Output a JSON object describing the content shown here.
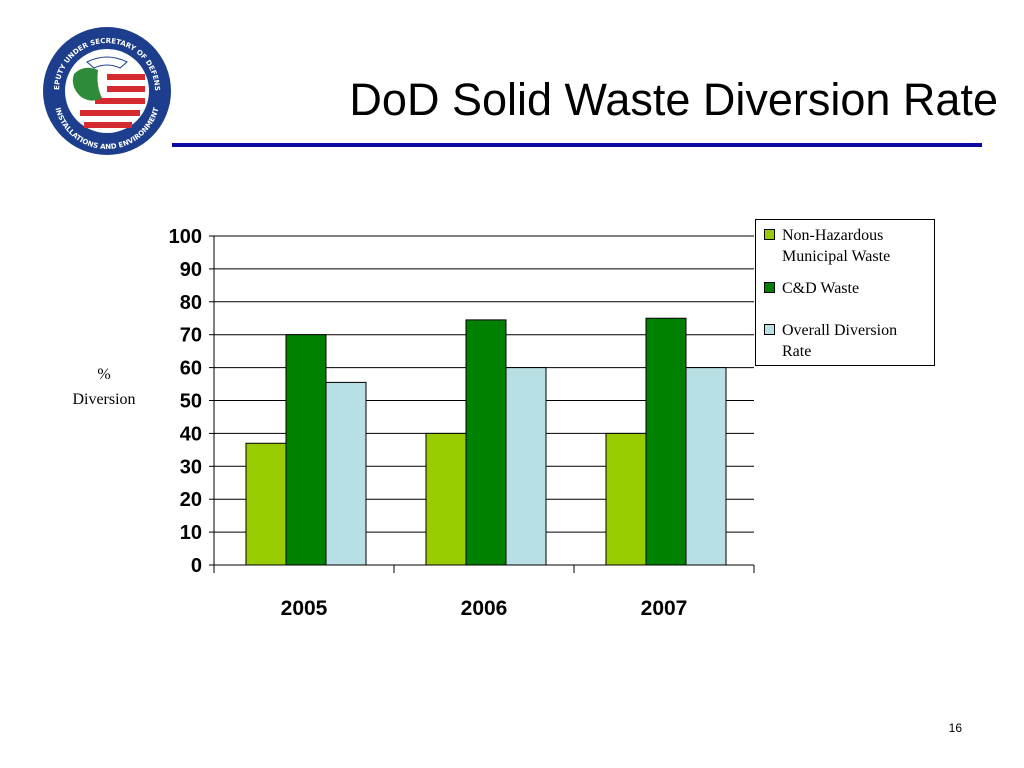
{
  "slide": {
    "title": "DoD Solid Waste Diversion Rate",
    "page_number": "16",
    "rule_color": "#0a0aa0"
  },
  "logo": {
    "ring_text_top": "DEPUTY UNDER SECRETARY OF DEFENSE",
    "ring_text_bottom": "INSTALLATIONS AND ENVIRONMENT",
    "colors": {
      "ring": "#1c3e8c",
      "red": "#d42a30",
      "white": "#ffffff",
      "green": "#2e8b3a"
    }
  },
  "chart_data": {
    "type": "bar",
    "title": "",
    "ylabel_lines": [
      "%",
      "Diversion"
    ],
    "xlabel": "",
    "categories": [
      "2005",
      "2006",
      "2007"
    ],
    "yticks": [
      "0",
      "10",
      "20",
      "30",
      "40",
      "50",
      "60",
      "70",
      "80",
      "90",
      "100"
    ],
    "ylim": [
      0,
      100
    ],
    "grid": true,
    "legend_position": "top-right",
    "series": [
      {
        "name_lines": [
          "Non-Hazardous",
          "Municipal Waste"
        ],
        "color": "#99cc00",
        "values": [
          37,
          40,
          40
        ]
      },
      {
        "name_lines": [
          "C&D Waste"
        ],
        "color": "#008000",
        "values": [
          70,
          74.5,
          75
        ]
      },
      {
        "name_lines": [
          "Overall Diversion",
          "Rate"
        ],
        "color": "#b8e0e4",
        "values": [
          55.5,
          60,
          60
        ]
      }
    ]
  }
}
